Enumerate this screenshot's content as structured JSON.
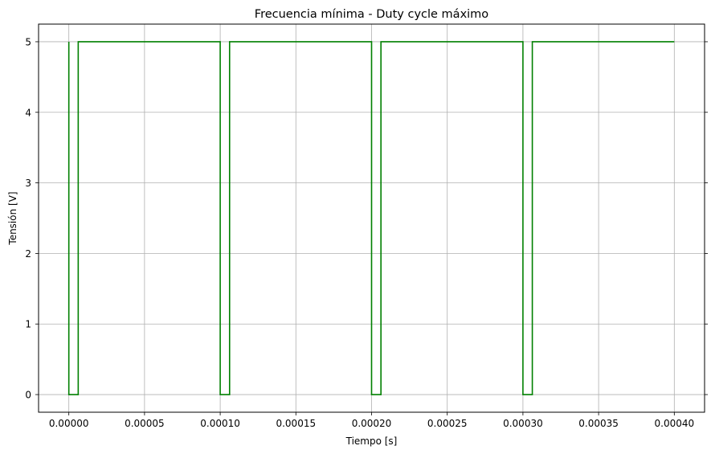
{
  "chart_data": {
    "type": "line",
    "title": "Frecuencia mínima - Duty cycle máximo",
    "xlabel": "Tiempo [s]",
    "ylabel": "Tensión [V]",
    "xlim": [
      -2e-05,
      0.00042
    ],
    "ylim": [
      -0.25,
      5.25
    ],
    "xticks": [
      "0.00000",
      "0.00005",
      "0.00010",
      "0.00015",
      "0.00020",
      "0.00025",
      "0.00030",
      "0.00035",
      "0.00040"
    ],
    "yticks": [
      "0",
      "1",
      "2",
      "3",
      "4",
      "5"
    ],
    "grid": true,
    "series": [
      {
        "color": "#008000",
        "x": [
          0,
          0,
          6.2e-06,
          6.2e-06,
          0.0001,
          0.0001,
          0.0001062,
          0.0001062,
          0.0002,
          0.0002,
          0.0002062,
          0.0002062,
          0.0003,
          0.0003,
          0.0003062,
          0.0003062,
          0.0004
        ],
        "y": [
          5,
          0,
          0,
          5,
          5,
          0,
          0,
          5,
          5,
          0,
          0,
          5,
          5,
          0,
          0,
          5,
          5
        ]
      }
    ]
  }
}
